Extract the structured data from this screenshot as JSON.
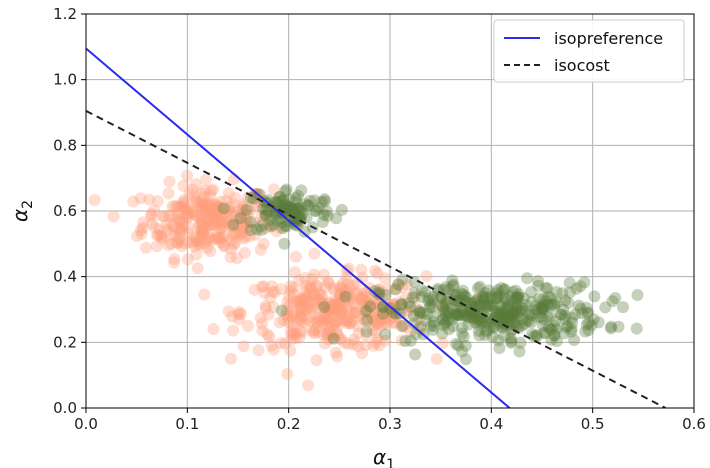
{
  "chart_data": {
    "type": "scatter",
    "title": "",
    "xlabel": {
      "symbol": "α",
      "subscript": "1"
    },
    "ylabel": {
      "symbol": "α",
      "subscript": "2"
    },
    "xlim": [
      0.0,
      0.6
    ],
    "ylim": [
      0.0,
      1.2
    ],
    "xticks": [
      "0.0",
      "0.1",
      "0.2",
      "0.3",
      "0.4",
      "0.5",
      "0.6"
    ],
    "yticks": [
      "0.0",
      "0.2",
      "0.4",
      "0.6",
      "0.8",
      "1.0",
      "1.2"
    ],
    "grid": true,
    "legend_position": "top-right",
    "lines": [
      {
        "name": "isopreference",
        "style": "solid",
        "color": "#2a2af0",
        "points": [
          [
            0.0,
            1.095
          ],
          [
            0.418,
            0.0
          ]
        ]
      },
      {
        "name": "isocost",
        "style": "dashed",
        "color": "#222222",
        "points": [
          [
            0.0,
            0.905
          ],
          [
            0.572,
            0.0
          ]
        ]
      }
    ],
    "scatter_series": [
      {
        "color": "#ff9f7a",
        "opacity": 0.35,
        "clusters": [
          {
            "cx": 0.12,
            "cy": 0.57,
            "sx": 0.032,
            "sy": 0.055,
            "n": 260
          },
          {
            "cx": 0.245,
            "cy": 0.29,
            "sx": 0.045,
            "sy": 0.055,
            "n": 340
          }
        ]
      },
      {
        "color": "#5a7a3a",
        "opacity": 0.35,
        "clusters": [
          {
            "cx": 0.2,
            "cy": 0.6,
            "sx": 0.022,
            "sy": 0.035,
            "n": 110
          },
          {
            "cx": 0.4,
            "cy": 0.29,
            "sx": 0.055,
            "sy": 0.045,
            "n": 380
          }
        ]
      }
    ]
  }
}
